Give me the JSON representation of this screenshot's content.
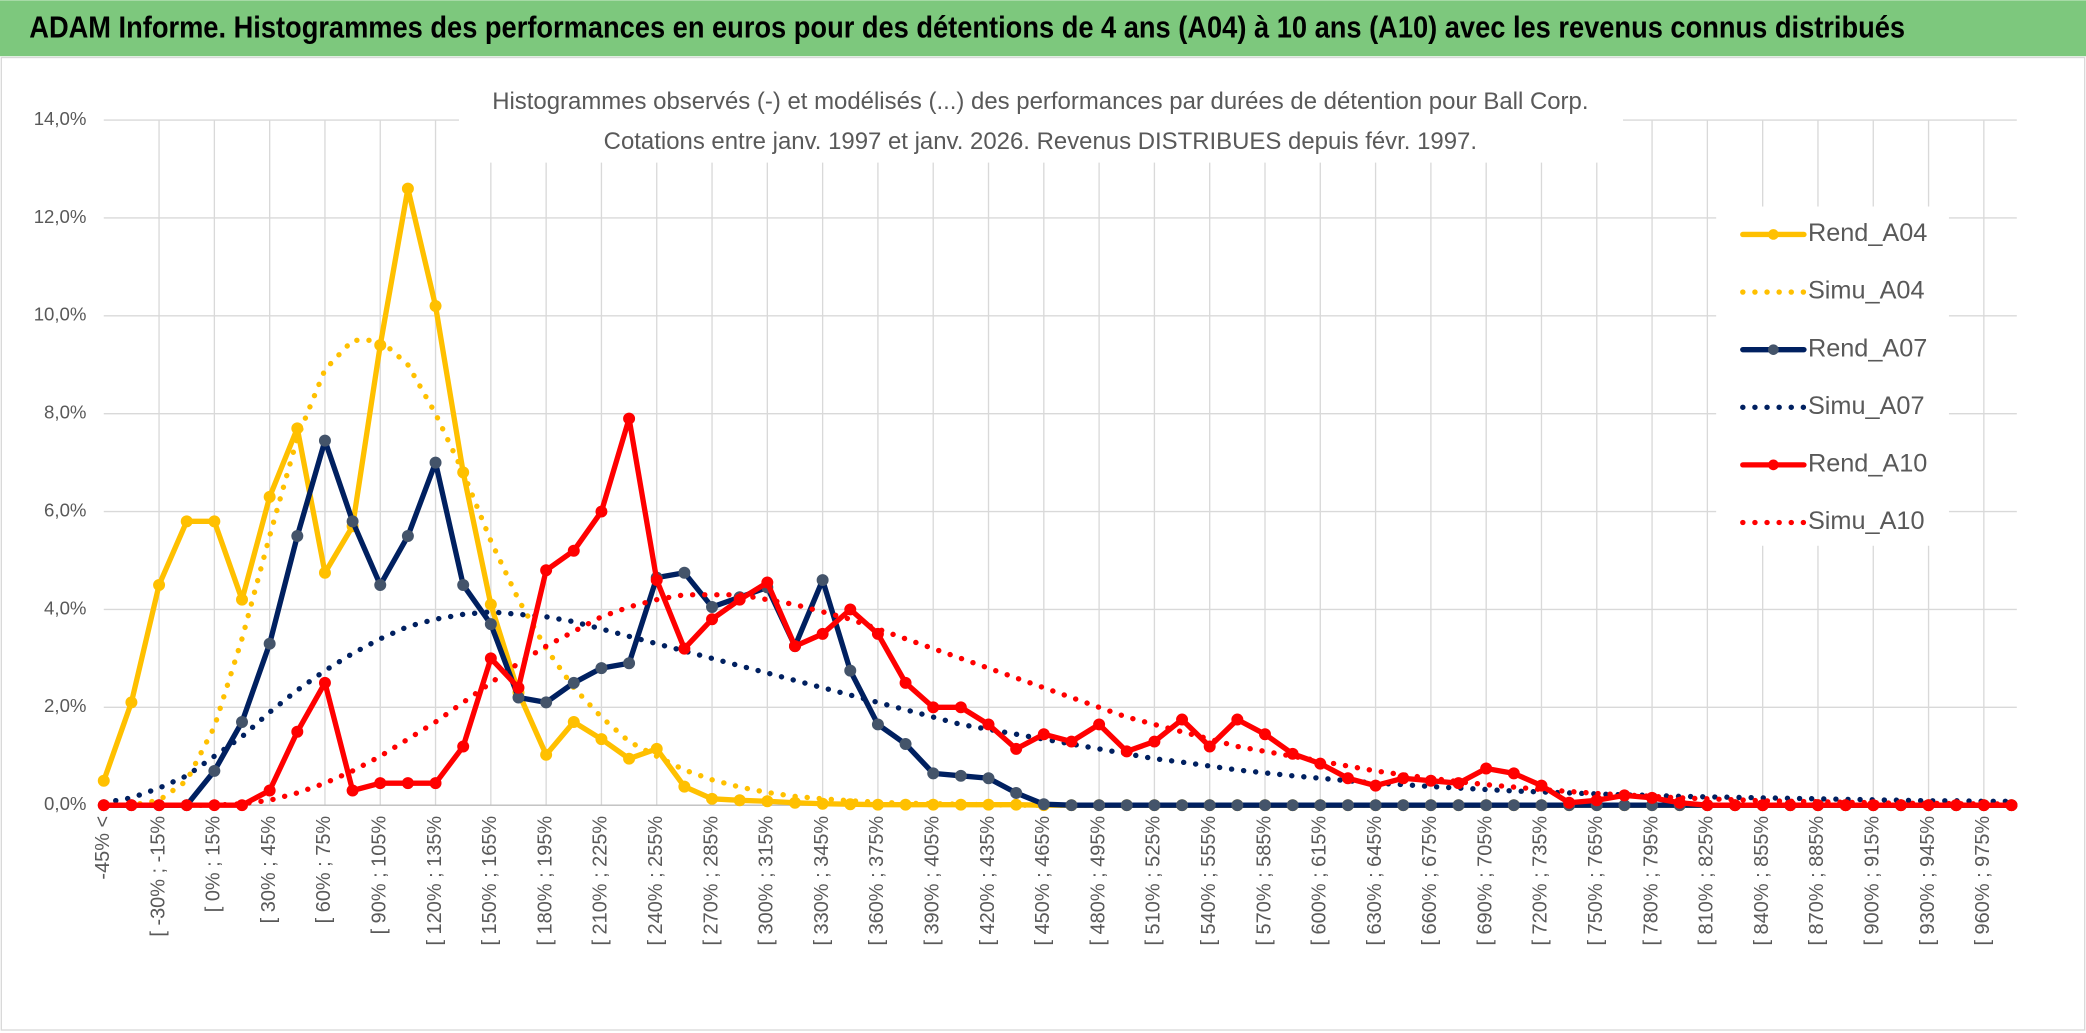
{
  "header": {
    "title": "ADAM Informe. Histogrammes des performances en euros pour des détentions de 4 ans (A04) à 10 ans (A10) avec les revenus connus distribués"
  },
  "chart_data": {
    "type": "line",
    "title": "Histogrammes observés (-) et modélisés (...) des performances par durées de détention pour Ball Corp.",
    "subtitle": "Cotations entre janv. 1997 et janv. 2026. Revenus DISTRIBUES depuis févr. 1997.",
    "categories": [
      "-45% <",
      null,
      "[ -30% ; -15%",
      null,
      "[ 0% ; 15%",
      null,
      "[ 30% ; 45%",
      null,
      "[ 60% ; 75%",
      null,
      "[ 90% ; 105%",
      null,
      "[ 120% ; 135%",
      null,
      "[ 150% ; 165%",
      null,
      "[ 180% ; 195%",
      null,
      "[ 210% ; 225%",
      null,
      "[ 240% ; 255%",
      null,
      "[ 270% ; 285%",
      null,
      "[ 300% ; 315%",
      null,
      "[ 330% ; 345%",
      null,
      "[ 360% ; 375%",
      null,
      "[ 390% ; 405%",
      null,
      "[ 420% ; 435%",
      null,
      "[ 450% ; 465%",
      null,
      "[ 480% ; 495%",
      null,
      "[ 510% ; 525%",
      null,
      "[ 540% ; 555%",
      null,
      "[ 570% ; 585%",
      null,
      "[ 600% ; 615%",
      null,
      "[ 630% ; 645%",
      null,
      "[ 660% ; 675%",
      null,
      "[ 690% ; 705%",
      null,
      "[ 720% ; 735%",
      null,
      "[ 750% ; 765%",
      null,
      "[ 780% ; 795%",
      null,
      "[ 810% ; 825%",
      null,
      "[ 840% ; 855%",
      null,
      "[ 870% ; 885%",
      null,
      "[ 900% ; 915%",
      null,
      "[ 930% ; 945%",
      null,
      "[ 960% ; 975%",
      null
    ],
    "ylim": [
      0,
      14
    ],
    "yticks": [
      {
        "value": 0,
        "label": "0,0%"
      },
      {
        "value": 2,
        "label": "2,0%"
      },
      {
        "value": 4,
        "label": "4,0%"
      },
      {
        "value": 6,
        "label": "6,0%"
      },
      {
        "value": 8,
        "label": "8,0%"
      },
      {
        "value": 10,
        "label": "10,0%"
      },
      {
        "value": 12,
        "label": "12,0%"
      },
      {
        "value": 14,
        "label": "14,0%"
      }
    ],
    "grid": true,
    "legend": "right",
    "series": [
      {
        "name": "Rend_A04",
        "color": "#FFC000",
        "style": "solid",
        "markers": true,
        "values": [
          0.5,
          2.1,
          4.5,
          5.8,
          5.8,
          4.2,
          6.3,
          7.7,
          4.75,
          5.7,
          9.4,
          12.6,
          10.2,
          6.8,
          4.1,
          2.3,
          1.03,
          1.7,
          1.35,
          0.95,
          1.15,
          0.38,
          0.13,
          0.1,
          0.08,
          0.05,
          0.03,
          0.02,
          0.01,
          0.01,
          0.01,
          0.01,
          0.01,
          0.01,
          0,
          0,
          0,
          0,
          0,
          0,
          0,
          0,
          0,
          0,
          0,
          0,
          0,
          0,
          0,
          0,
          0,
          0,
          0,
          0,
          0,
          0,
          0,
          0,
          0,
          0,
          0,
          0,
          0,
          0,
          0,
          0,
          0,
          0,
          0,
          0
        ]
      },
      {
        "name": "Simu_A04",
        "color": "#FFC000",
        "style": "dotted",
        "markers": false,
        "values": [
          0,
          0,
          0.1,
          0.5,
          1.6,
          3.4,
          5.5,
          7.5,
          8.9,
          9.5,
          9.5,
          9.0,
          8.0,
          6.8,
          5.4,
          4.2,
          3.2,
          2.4,
          1.8,
          1.3,
          1.0,
          0.72,
          0.52,
          0.37,
          0.26,
          0.18,
          0.13,
          0.09,
          0.06,
          0.04,
          0.03,
          0.02,
          0.01,
          0,
          0,
          0,
          0,
          0,
          0,
          0,
          0,
          0,
          0,
          0,
          0,
          0,
          0,
          0,
          0,
          0,
          0,
          0,
          0,
          0,
          0,
          0,
          0,
          0,
          0,
          0,
          0,
          0,
          0,
          0,
          0,
          0,
          0,
          0,
          0,
          0
        ]
      },
      {
        "name": "Rend_A07",
        "color": "#002060",
        "marker_color": "#44546A",
        "style": "solid",
        "markers": true,
        "values": [
          0,
          0,
          0,
          0,
          0.7,
          1.7,
          3.3,
          5.5,
          7.45,
          5.8,
          4.5,
          5.5,
          7.0,
          4.5,
          3.7,
          2.2,
          2.1,
          2.5,
          2.8,
          2.9,
          4.65,
          4.75,
          4.05,
          4.25,
          4.45,
          3.25,
          4.6,
          2.75,
          1.65,
          1.25,
          0.65,
          0.6,
          0.55,
          0.25,
          0.02,
          0,
          0,
          0,
          0,
          0,
          0,
          0,
          0,
          0,
          0,
          0,
          0,
          0,
          0,
          0,
          0,
          0,
          0,
          0,
          0,
          0,
          0,
          0,
          0,
          0,
          0,
          0,
          0,
          0,
          0,
          0,
          0,
          0,
          0,
          0
        ]
      },
      {
        "name": "Simu_A07",
        "color": "#002060",
        "style": "dotted",
        "markers": false,
        "values": [
          0.05,
          0.15,
          0.35,
          0.6,
          1.0,
          1.4,
          1.9,
          2.35,
          2.75,
          3.1,
          3.4,
          3.65,
          3.8,
          3.9,
          3.95,
          3.9,
          3.85,
          3.75,
          3.6,
          3.45,
          3.3,
          3.15,
          3.0,
          2.85,
          2.7,
          2.55,
          2.4,
          2.25,
          2.1,
          1.95,
          1.8,
          1.65,
          1.55,
          1.45,
          1.35,
          1.25,
          1.15,
          1.05,
          0.95,
          0.88,
          0.8,
          0.72,
          0.66,
          0.6,
          0.55,
          0.5,
          0.45,
          0.42,
          0.38,
          0.35,
          0.32,
          0.29,
          0.27,
          0.25,
          0.23,
          0.21,
          0.2,
          0.18,
          0.17,
          0.16,
          0.15,
          0.14,
          0.13,
          0.12,
          0.11,
          0.1,
          0.09,
          0.09,
          0.08,
          0.08
        ]
      },
      {
        "name": "Rend_A10",
        "color": "#FF0000",
        "style": "solid",
        "markers": true,
        "values": [
          0,
          0,
          0,
          0,
          0,
          0,
          0.3,
          1.5,
          2.5,
          0.3,
          0.45,
          0.45,
          0.45,
          1.2,
          3.0,
          2.4,
          4.8,
          5.2,
          6.0,
          7.9,
          4.6,
          3.2,
          3.8,
          4.2,
          4.55,
          3.25,
          3.5,
          4.0,
          3.5,
          2.5,
          2.0,
          2.0,
          1.65,
          1.15,
          1.45,
          1.3,
          1.65,
          1.1,
          1.3,
          1.75,
          1.2,
          1.75,
          1.45,
          1.05,
          0.85,
          0.55,
          0.4,
          0.55,
          0.5,
          0.45,
          0.75,
          0.65,
          0.4,
          0.05,
          0.1,
          0.2,
          0.15,
          0.05,
          0,
          0,
          0,
          0,
          0,
          0,
          0,
          0,
          0,
          0,
          0,
          0
        ]
      },
      {
        "name": "Simu_A10",
        "color": "#FF0000",
        "style": "dotted",
        "markers": false,
        "values": [
          0,
          0,
          0,
          0,
          0,
          0.03,
          0.1,
          0.25,
          0.45,
          0.7,
          1.0,
          1.35,
          1.7,
          2.1,
          2.5,
          2.9,
          3.25,
          3.55,
          3.85,
          4.05,
          4.2,
          4.3,
          4.3,
          4.3,
          4.2,
          4.1,
          3.95,
          3.8,
          3.6,
          3.4,
          3.2,
          3.0,
          2.8,
          2.6,
          2.4,
          2.2,
          2.0,
          1.8,
          1.65,
          1.5,
          1.35,
          1.2,
          1.1,
          1.0,
          0.9,
          0.8,
          0.7,
          0.62,
          0.55,
          0.48,
          0.42,
          0.37,
          0.32,
          0.28,
          0.24,
          0.21,
          0.18,
          0.15,
          0.13,
          0.11,
          0.09,
          0.08,
          0.07,
          0.06,
          0.05,
          0.04,
          0.04,
          0.03,
          0.03,
          0.02
        ]
      }
    ]
  }
}
